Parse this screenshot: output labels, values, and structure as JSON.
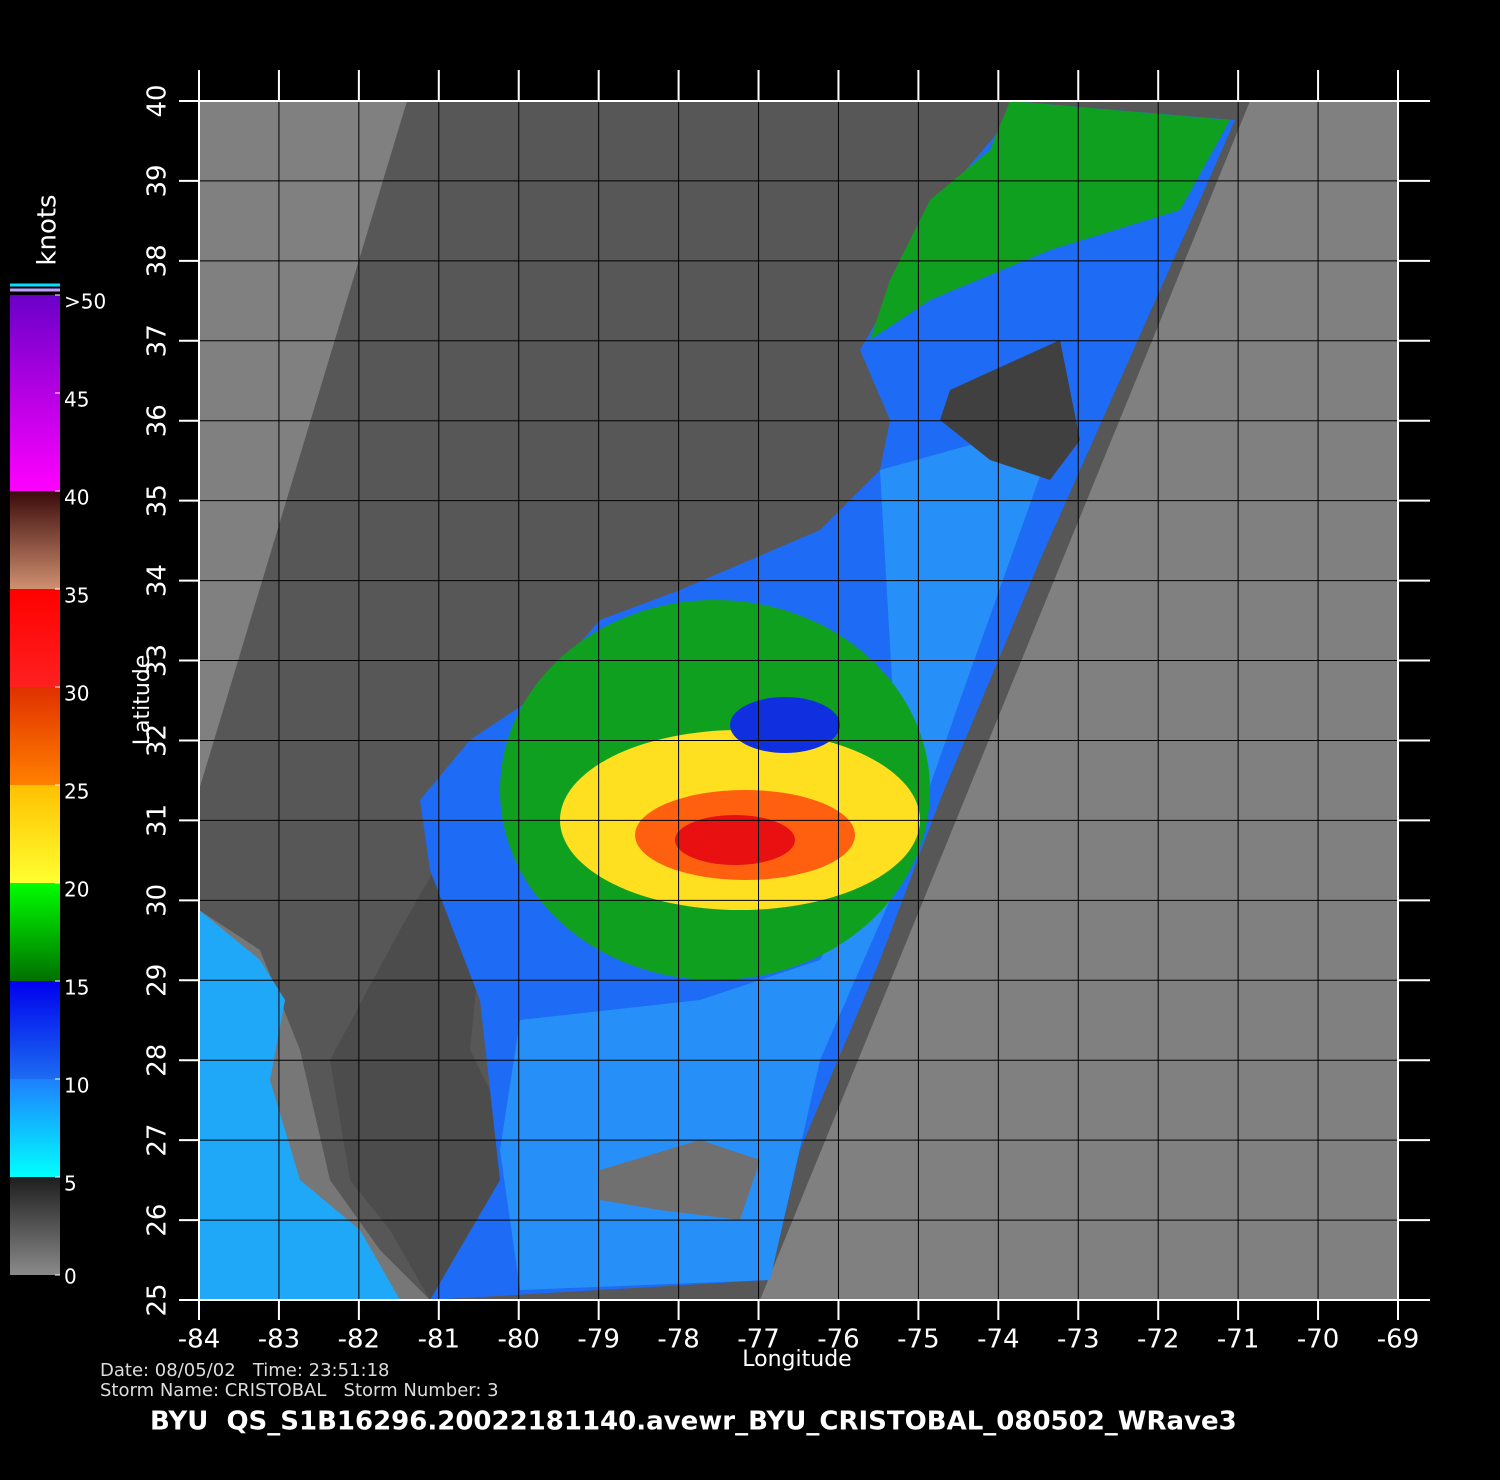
{
  "map": {
    "xlabel": "Longitude",
    "ylabel": "Latitude",
    "xlim": [
      -84,
      -69
    ],
    "ylim": [
      25,
      40
    ],
    "xticks": [
      -84,
      -83,
      -82,
      -81,
      -80,
      -79,
      -78,
      -77,
      -76,
      -75,
      -74,
      -73,
      -72,
      -71,
      -70,
      -69
    ],
    "yticks": [
      25,
      26,
      27,
      28,
      29,
      30,
      31,
      32,
      33,
      34,
      35,
      36,
      37,
      38,
      39,
      40
    ]
  },
  "colorbar": {
    "unit": "knots",
    "lim": [
      0,
      50
    ],
    "ticks": [
      0,
      5,
      10,
      15,
      20,
      25,
      30,
      35,
      40,
      45,
      {
        "value": 50,
        "label": ">50"
      }
    ]
  },
  "footer": {
    "line1": "Date: 08/05/02   Time: 23:51:18",
    "line2": "Storm Name: CRISTOBAL   Storm Number: 3",
    "title": "BYU  QS_S1B16296.20022181140.avewr_BYU_CRISTOBAL_080502_WRave3"
  }
}
